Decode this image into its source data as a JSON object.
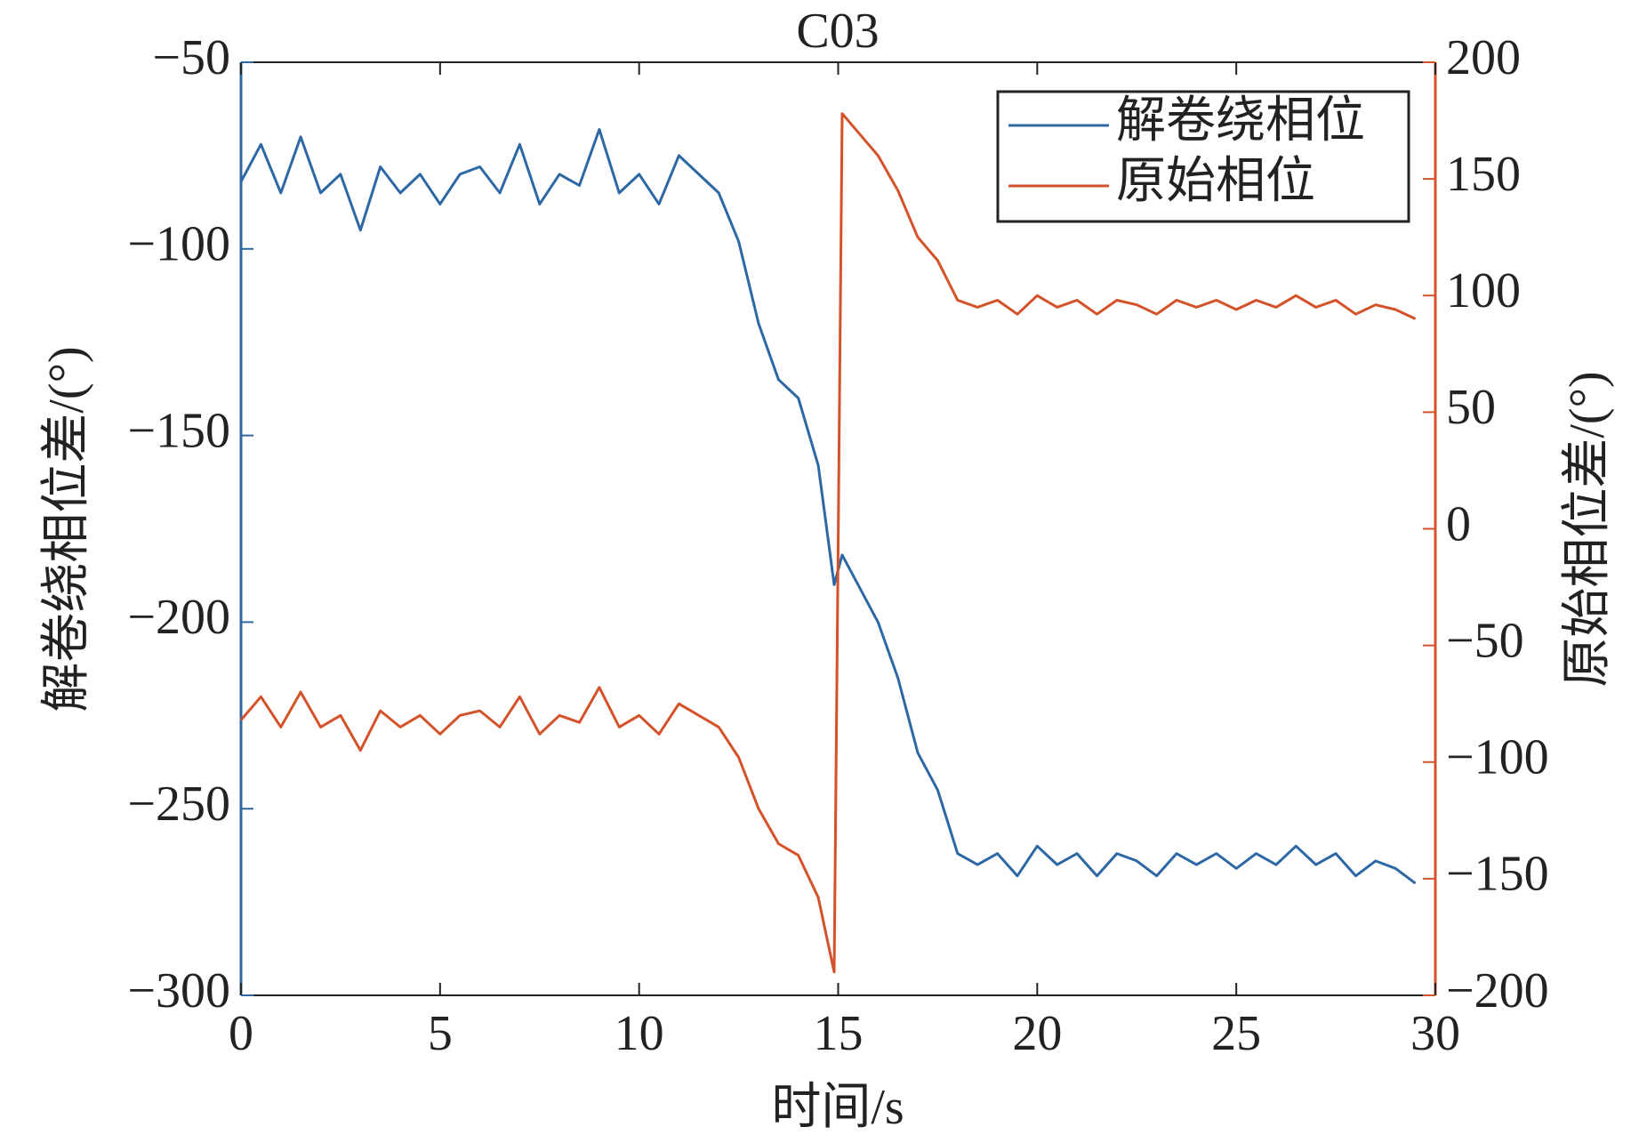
{
  "chart_data": {
    "type": "line",
    "title": "C03",
    "x_label": "时间/s",
    "y_label": "解卷绕相位差/(°)",
    "y2_label": "原始相位差/(°)",
    "legend": "upper right",
    "x": [
      0,
      0.5,
      1,
      1.5,
      2,
      2.5,
      3,
      3.5,
      4,
      4.5,
      5,
      5.5,
      6,
      6.5,
      7,
      7.5,
      8,
      8.5,
      9,
      9.5,
      10,
      10.5,
      11,
      11.5,
      12,
      12.5,
      13,
      13.5,
      14,
      14.5,
      14.9,
      15.1,
      15.5,
      16,
      16.5,
      17,
      17.5,
      18,
      18.5,
      19,
      19.5,
      20,
      20.5,
      21,
      21.5,
      22,
      22.5,
      23,
      23.5,
      24,
      24.5,
      25,
      25.5,
      26,
      26.5,
      27,
      27.5,
      28,
      28.5,
      29,
      29.5
    ],
    "series": [
      {
        "name": "解卷绕相位",
        "color": "#2d68a4",
        "axis": "y",
        "values": [
          -82,
          -72,
          -85,
          -70,
          -85,
          -80,
          -95,
          -78,
          -85,
          -80,
          -88,
          -80,
          -78,
          -85,
          -72,
          -88,
          -80,
          -83,
          -68,
          -85,
          -80,
          -88,
          -75,
          -80,
          -85,
          -98,
          -120,
          -135,
          -140,
          -158,
          -190,
          -182,
          -190,
          -200,
          -215,
          -235,
          -245,
          -262,
          -265,
          -262,
          -268,
          -260,
          -265,
          -262,
          -268,
          -262,
          -264,
          -268,
          -262,
          -265,
          -262,
          -266,
          -262,
          -265,
          -260,
          -265,
          -262,
          -268,
          -264,
          -266,
          -270
        ]
      },
      {
        "name": "原始相位",
        "color": "#d4522a",
        "axis": "y2",
        "values": [
          -82,
          -72,
          -85,
          -70,
          -85,
          -80,
          -95,
          -78,
          -85,
          -80,
          -88,
          -80,
          -78,
          -85,
          -72,
          -88,
          -80,
          -83,
          -68,
          -85,
          -80,
          -88,
          -75,
          -80,
          -85,
          -98,
          -120,
          -135,
          -140,
          -158,
          -190,
          178,
          170,
          160,
          145,
          125,
          115,
          98,
          95,
          98,
          92,
          100,
          95,
          98,
          92,
          98,
          96,
          92,
          98,
          95,
          98,
          94,
          98,
          95,
          100,
          95,
          98,
          92,
          96,
          94,
          90
        ]
      }
    ],
    "xlim": [
      0,
      30
    ],
    "xticks": [
      0,
      5,
      10,
      15,
      20,
      25,
      30
    ],
    "ylim": [
      -300,
      -50
    ],
    "yticks": [
      {
        "value": -300,
        "label": "−300"
      },
      {
        "value": -250,
        "label": "−250"
      },
      {
        "value": -200,
        "label": "−200"
      },
      {
        "value": -150,
        "label": "−150"
      },
      {
        "value": -100,
        "label": "−100"
      },
      {
        "value": -50,
        "label": "−50"
      }
    ],
    "y2lim": [
      -200,
      200
    ],
    "y2ticks": [
      {
        "value": -200,
        "label": "−200"
      },
      {
        "value": -150,
        "label": "−150"
      },
      {
        "value": -100,
        "label": "−100"
      },
      {
        "value": -50,
        "label": "−50"
      },
      0,
      50,
      100,
      150,
      200
    ]
  }
}
